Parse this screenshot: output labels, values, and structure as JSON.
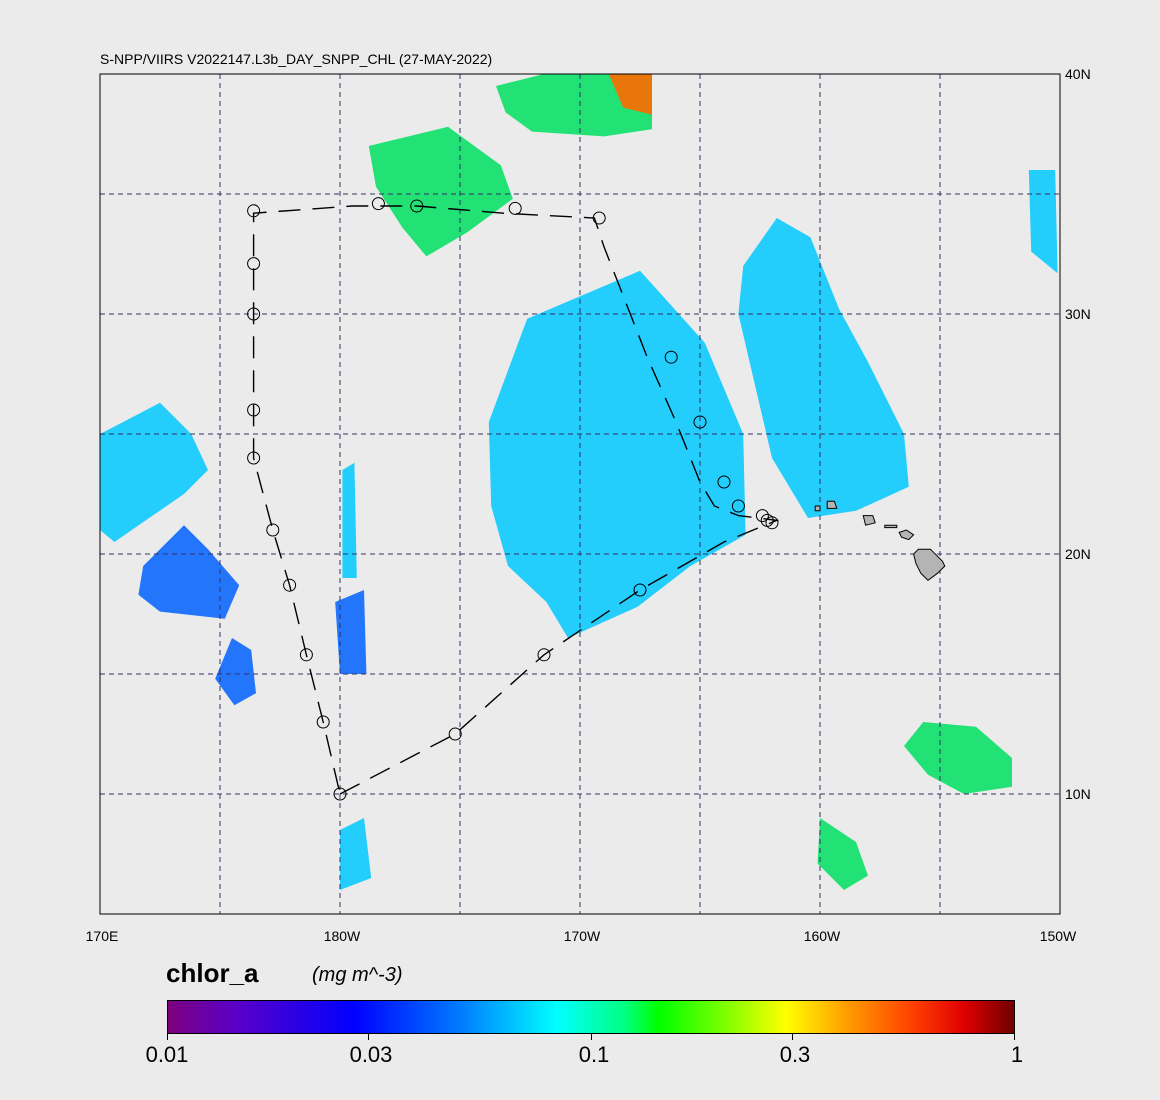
{
  "title": "S-NPP/VIIRS V2022147.L3b_DAY_SNPP_CHL (27-MAY-2022)",
  "lat_labels": [
    "40N",
    "30N",
    "20N",
    "10N"
  ],
  "lon_labels": [
    "170E",
    "180W",
    "170W",
    "160W",
    "150W"
  ],
  "colorbar": {
    "variable": "chlor_a",
    "units": "(mg m^-3)",
    "tick_labels": [
      "0.01",
      "0.03",
      "0.1",
      "0.3",
      "1"
    ]
  },
  "map": {
    "lon_range": [
      170,
      210
    ],
    "lat_range": [
      5,
      40
    ],
    "grid_lons": [
      175,
      180,
      185,
      190,
      195,
      200,
      205
    ],
    "grid_lats": [
      10,
      15,
      20,
      25,
      30,
      35
    ],
    "colors": {
      "background": "#ebebeb",
      "grid": "#333366",
      "land": "#b4b4b4",
      "chl_low": "#0060ff",
      "chl_mid": "#00c8ff",
      "chl_high": "#00e060"
    },
    "cruise_track": {
      "description": "dashed track with station circles",
      "points": [
        [
          180.0,
          10.0
        ],
        [
          184.8,
          12.5
        ],
        [
          188.5,
          15.8
        ],
        [
          192.5,
          18.5
        ],
        [
          196.0,
          20.5
        ],
        [
          198.2,
          21.4
        ],
        [
          196.6,
          21.6
        ],
        [
          195.6,
          22.0
        ],
        [
          195.0,
          23.0
        ],
        [
          194.0,
          25.5
        ],
        [
          192.8,
          28.2
        ],
        [
          191.0,
          32.8
        ],
        [
          190.6,
          34.0
        ],
        [
          186.8,
          34.2
        ],
        [
          183.2,
          34.5
        ],
        [
          180.5,
          34.5
        ],
        [
          176.4,
          34.2
        ],
        [
          176.4,
          32.0
        ],
        [
          176.4,
          30.0
        ],
        [
          176.4,
          28.0
        ],
        [
          176.4,
          26.0
        ],
        [
          176.4,
          24.0
        ],
        [
          177.2,
          21.0
        ],
        [
          177.9,
          18.7
        ],
        [
          178.6,
          15.8
        ],
        [
          179.3,
          13.0
        ],
        [
          180.0,
          10.0
        ]
      ],
      "stations": [
        [
          180.0,
          10.0
        ],
        [
          184.8,
          12.5
        ],
        [
          188.5,
          15.8
        ],
        [
          192.5,
          18.5
        ],
        [
          198.0,
          21.3
        ],
        [
          197.8,
          21.4
        ],
        [
          197.6,
          21.6
        ],
        [
          196.6,
          22.0
        ],
        [
          196.0,
          23.0
        ],
        [
          195.0,
          25.5
        ],
        [
          193.8,
          28.2
        ],
        [
          190.8,
          34.0
        ],
        [
          187.3,
          34.4
        ],
        [
          183.2,
          34.5
        ],
        [
          181.6,
          34.6
        ],
        [
          176.4,
          34.3
        ],
        [
          176.4,
          32.1
        ],
        [
          176.4,
          30.0
        ],
        [
          176.4,
          26.0
        ],
        [
          176.4,
          24.0
        ],
        [
          177.2,
          21.0
        ],
        [
          177.9,
          18.7
        ],
        [
          178.6,
          15.8
        ],
        [
          179.3,
          13.0
        ]
      ]
    },
    "hawaii_islands": [
      {
        "name": "Big Island",
        "pts": [
          [
            204.1,
            20.2
          ],
          [
            204.6,
            20.2
          ],
          [
            205.1,
            19.7
          ],
          [
            205.2,
            19.5
          ],
          [
            204.9,
            19.2
          ],
          [
            204.5,
            18.9
          ],
          [
            204.2,
            19.2
          ],
          [
            204.0,
            19.6
          ],
          [
            203.9,
            20.0
          ]
        ]
      },
      {
        "name": "Maui",
        "pts": [
          [
            203.3,
            20.9
          ],
          [
            203.6,
            21.0
          ],
          [
            203.9,
            20.8
          ],
          [
            203.7,
            20.6
          ],
          [
            203.4,
            20.7
          ]
        ]
      },
      {
        "name": "Molokai",
        "pts": [
          [
            202.7,
            21.2
          ],
          [
            203.2,
            21.2
          ],
          [
            203.2,
            21.1
          ],
          [
            202.7,
            21.1
          ]
        ]
      },
      {
        "name": "Oahu",
        "pts": [
          [
            201.8,
            21.6
          ],
          [
            202.2,
            21.6
          ],
          [
            202.3,
            21.3
          ],
          [
            201.9,
            21.2
          ]
        ]
      },
      {
        "name": "Kauai",
        "pts": [
          [
            200.3,
            22.2
          ],
          [
            200.6,
            22.2
          ],
          [
            200.7,
            21.9
          ],
          [
            200.3,
            21.9
          ]
        ]
      },
      {
        "name": "Niihau",
        "pts": [
          [
            199.8,
            22.0
          ],
          [
            200.0,
            22.0
          ],
          [
            200.0,
            21.8
          ],
          [
            199.8,
            21.8
          ]
        ]
      }
    ],
    "chl_patches": [
      {
        "level": "mid",
        "pts": [
          [
            170,
            25
          ],
          [
            172.5,
            26.3
          ],
          [
            173.8,
            25.0
          ],
          [
            174.5,
            23.5
          ],
          [
            173.5,
            22.5
          ],
          [
            170.6,
            20.5
          ],
          [
            170,
            21
          ]
        ]
      },
      {
        "level": "low",
        "pts": [
          [
            171.8,
            19.5
          ],
          [
            173.5,
            21.2
          ],
          [
            174.5,
            20.2
          ],
          [
            175.8,
            18.7
          ],
          [
            175.2,
            17.3
          ],
          [
            172.5,
            17.6
          ],
          [
            171.6,
            18.3
          ]
        ]
      },
      {
        "level": "low",
        "pts": [
          [
            175.5,
            16.5
          ],
          [
            176.3,
            16.0
          ],
          [
            176.5,
            14.2
          ],
          [
            175.6,
            13.7
          ],
          [
            174.8,
            14.8
          ]
        ]
      },
      {
        "level": "low",
        "pts": [
          [
            179.8,
            18.0
          ],
          [
            181.0,
            18.5
          ],
          [
            181.1,
            15.0
          ],
          [
            180.0,
            15.0
          ]
        ]
      },
      {
        "level": "mid",
        "pts": [
          [
            180.1,
            23.5
          ],
          [
            180.6,
            23.8
          ],
          [
            180.7,
            19.0
          ],
          [
            180.1,
            19.0
          ]
        ]
      },
      {
        "level": "mid",
        "pts": [
          [
            186.2,
            25.5
          ],
          [
            187.8,
            29.8
          ],
          [
            192.5,
            31.8
          ],
          [
            195.2,
            28.8
          ],
          [
            196.8,
            25.0
          ],
          [
            196.9,
            20.8
          ],
          [
            194.6,
            19.5
          ],
          [
            192.4,
            17.8
          ],
          [
            189.5,
            16.5
          ],
          [
            188.6,
            18.0
          ],
          [
            187.0,
            19.5
          ],
          [
            186.3,
            22.0
          ]
        ]
      },
      {
        "level": "mid",
        "pts": [
          [
            198.2,
            34.0
          ],
          [
            199.6,
            33.2
          ],
          [
            200.8,
            30.2
          ],
          [
            202.0,
            28.0
          ],
          [
            203.5,
            25.0
          ],
          [
            203.7,
            22.8
          ],
          [
            201.5,
            21.8
          ],
          [
            199.5,
            21.5
          ],
          [
            198.0,
            24.0
          ],
          [
            196.6,
            30.0
          ],
          [
            196.8,
            32.0
          ]
        ]
      },
      {
        "level": "high",
        "pts": [
          [
            181.2,
            37.0
          ],
          [
            184.5,
            37.8
          ],
          [
            186.7,
            36.2
          ],
          [
            187.2,
            34.8
          ],
          [
            185.3,
            33.4
          ],
          [
            183.6,
            32.4
          ],
          [
            182.6,
            33.6
          ],
          [
            181.5,
            35.3
          ]
        ]
      },
      {
        "level": "high",
        "pts": [
          [
            186.5,
            39.5
          ],
          [
            188.5,
            40.0
          ],
          [
            193.0,
            40.0
          ],
          [
            193.0,
            37.7
          ],
          [
            191.0,
            37.4
          ],
          [
            188.0,
            37.6
          ],
          [
            186.9,
            38.4
          ]
        ]
      },
      {
        "level": "mid",
        "pts": [
          [
            208.7,
            36.0
          ],
          [
            209.8,
            36.0
          ],
          [
            209.9,
            31.7
          ],
          [
            208.8,
            32.6
          ]
        ]
      },
      {
        "level": "high",
        "pts": [
          [
            204.3,
            13.0
          ],
          [
            206.5,
            12.8
          ],
          [
            208.0,
            11.5
          ],
          [
            208.0,
            10.3
          ],
          [
            206.0,
            10.0
          ],
          [
            204.5,
            10.8
          ],
          [
            203.5,
            12.0
          ]
        ]
      },
      {
        "level": "high",
        "pts": [
          [
            200.0,
            9.0
          ],
          [
            201.5,
            8.0
          ],
          [
            202.0,
            6.6
          ],
          [
            201.0,
            6.0
          ],
          [
            199.9,
            7.1
          ]
        ]
      },
      {
        "level": "mid",
        "pts": [
          [
            180.0,
            8.5
          ],
          [
            181.0,
            9.0
          ],
          [
            181.3,
            6.5
          ],
          [
            180.0,
            6.0
          ]
        ]
      }
    ],
    "hot_patch": {
      "pts": [
        [
          191.2,
          40.0
        ],
        [
          193.0,
          40.0
        ],
        [
          193.0,
          38.3
        ],
        [
          191.8,
          38.6
        ]
      ]
    }
  }
}
